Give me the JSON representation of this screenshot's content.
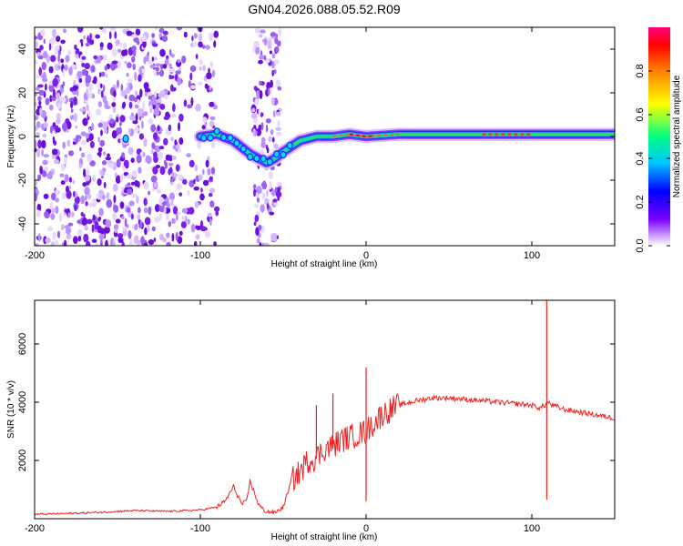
{
  "figure": {
    "title": "GN04.2026.088.05.52.R09"
  },
  "chart_data": [
    {
      "type": "heatmap",
      "name": "spectrogram",
      "xlabel": "Height of straight line (km)",
      "ylabel": "Frequency (Hz)",
      "xlim": [
        -200,
        150
      ],
      "ylim": [
        -50,
        50
      ],
      "xticks": [
        -200,
        -100,
        0,
        100
      ],
      "yticks": [
        -40,
        -20,
        0,
        20,
        40
      ],
      "colorbar": {
        "label": "Normalized spectral amplitude",
        "range": [
          0,
          1
        ],
        "ticks": [
          0.0,
          0.2,
          0.4,
          0.6,
          0.8
        ],
        "colormap": [
          "#ffffff",
          "#7a00ff",
          "#0000ff",
          "#00c8ff",
          "#00ff80",
          "#ffff00",
          "#ff8000",
          "#ff0000",
          "#ff0080"
        ]
      },
      "ridge": {
        "x": [
          -100,
          -90,
          -80,
          -75,
          -70,
          -65,
          -60,
          -55,
          -50,
          -40,
          -30,
          -20,
          -10,
          0,
          20,
          50,
          100,
          150
        ],
        "freq": [
          0,
          1,
          -2,
          -5,
          -8,
          -10,
          -12,
          -10,
          -7,
          -2,
          0,
          0,
          1,
          0,
          1,
          1,
          1,
          1
        ]
      },
      "noise_regions": [
        [
          -200,
          -90
        ],
        [
          -68,
          -52
        ]
      ]
    },
    {
      "type": "line",
      "name": "snr",
      "xlabel": "Height of straight line (km)",
      "ylabel": "SNR (10 * v/v)",
      "xlim": [
        -200,
        150
      ],
      "ylim": [
        0,
        7500
      ],
      "xticks": [
        -200,
        -100,
        0,
        100
      ],
      "yticks": [
        2000,
        4000,
        6000
      ],
      "series": [
        {
          "name": "SNR",
          "color": "#ee2222",
          "x": [
            -200,
            -180,
            -160,
            -140,
            -120,
            -100,
            -90,
            -85,
            -80,
            -75,
            -72,
            -70,
            -65,
            -62,
            -60,
            -55,
            -50,
            -45,
            -40,
            -35,
            -30,
            -25,
            -20,
            -15,
            -10,
            -5,
            0,
            5,
            10,
            20,
            30,
            40,
            50,
            60,
            70,
            80,
            90,
            100,
            105,
            108,
            110,
            112,
            120,
            130,
            140,
            150
          ],
          "y": [
            150,
            180,
            220,
            280,
            250,
            300,
            400,
            600,
            1100,
            500,
            600,
            1300,
            500,
            300,
            250,
            200,
            400,
            1300,
            1600,
            2000,
            2100,
            2400,
            2500,
            2700,
            2800,
            2900,
            3000,
            3300,
            3600,
            3900,
            4050,
            4150,
            4150,
            4100,
            4050,
            4000,
            3950,
            3900,
            3800,
            3900,
            4000,
            3900,
            3750,
            3650,
            3550,
            3450
          ]
        }
      ],
      "spikes": [
        {
          "x": -30,
          "y": 3900
        },
        {
          "x": -20,
          "y": 4300
        },
        {
          "x": 0,
          "y": 5200
        },
        {
          "x": 0,
          "y": 600
        },
        {
          "x": 109,
          "y": 7500
        },
        {
          "x": 109,
          "y": 650
        }
      ]
    }
  ]
}
